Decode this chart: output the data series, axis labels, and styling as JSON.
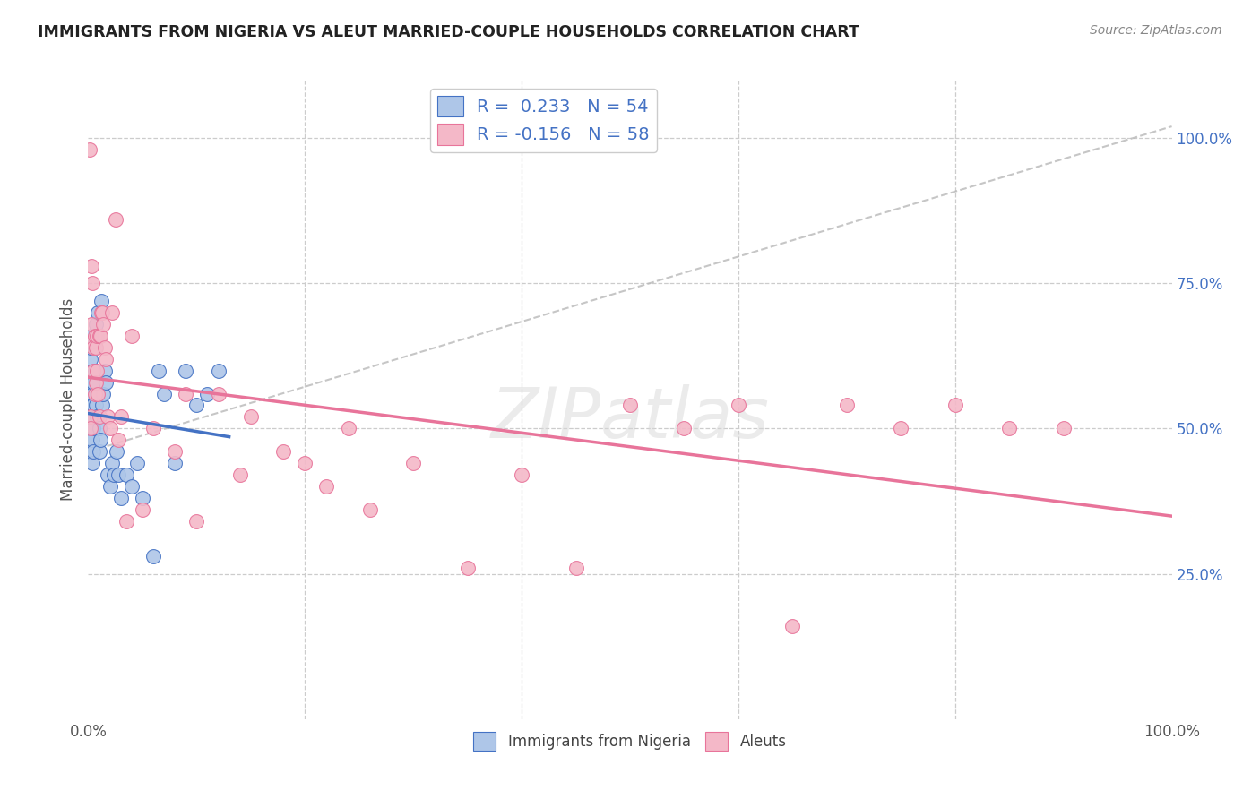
{
  "title": "IMMIGRANTS FROM NIGERIA VS ALEUT MARRIED-COUPLE HOUSEHOLDS CORRELATION CHART",
  "source": "Source: ZipAtlas.com",
  "ylabel": "Married-couple Households",
  "ytick_labels": [
    "25.0%",
    "50.0%",
    "75.0%",
    "100.0%"
  ],
  "ytick_vals": [
    0.25,
    0.5,
    0.75,
    1.0
  ],
  "r1": 0.233,
  "n1": 54,
  "r2": -0.156,
  "n2": 58,
  "color_nigeria": "#aec6e8",
  "color_aleut": "#f4b8c8",
  "line_nigeria": "#4472c4",
  "line_aleut": "#e8749a",
  "line_dashed": "#b8b8b8",
  "background": "#ffffff",
  "nigeria_x": [
    0.0,
    0.001,
    0.001,
    0.001,
    0.001,
    0.002,
    0.002,
    0.002,
    0.002,
    0.003,
    0.003,
    0.003,
    0.004,
    0.004,
    0.004,
    0.004,
    0.005,
    0.005,
    0.005,
    0.005,
    0.006,
    0.006,
    0.007,
    0.007,
    0.008,
    0.008,
    0.009,
    0.01,
    0.01,
    0.011,
    0.012,
    0.013,
    0.014,
    0.015,
    0.016,
    0.018,
    0.02,
    0.022,
    0.024,
    0.026,
    0.028,
    0.03,
    0.035,
    0.04,
    0.045,
    0.05,
    0.06,
    0.065,
    0.07,
    0.08,
    0.09,
    0.1,
    0.11,
    0.12
  ],
  "nigeria_y": [
    0.5,
    0.48,
    0.52,
    0.46,
    0.5,
    0.62,
    0.58,
    0.64,
    0.5,
    0.66,
    0.54,
    0.5,
    0.56,
    0.52,
    0.48,
    0.44,
    0.58,
    0.54,
    0.5,
    0.46,
    0.64,
    0.6,
    0.68,
    0.54,
    0.56,
    0.52,
    0.7,
    0.5,
    0.46,
    0.48,
    0.72,
    0.54,
    0.56,
    0.6,
    0.58,
    0.42,
    0.4,
    0.44,
    0.42,
    0.46,
    0.42,
    0.38,
    0.42,
    0.4,
    0.44,
    0.38,
    0.28,
    0.6,
    0.56,
    0.44,
    0.6,
    0.54,
    0.56,
    0.6
  ],
  "aleut_x": [
    0.001,
    0.002,
    0.002,
    0.003,
    0.003,
    0.004,
    0.004,
    0.005,
    0.005,
    0.006,
    0.006,
    0.007,
    0.007,
    0.008,
    0.008,
    0.009,
    0.01,
    0.01,
    0.011,
    0.012,
    0.013,
    0.014,
    0.015,
    0.016,
    0.018,
    0.02,
    0.022,
    0.025,
    0.028,
    0.03,
    0.035,
    0.04,
    0.05,
    0.06,
    0.08,
    0.09,
    0.1,
    0.12,
    0.14,
    0.15,
    0.18,
    0.2,
    0.22,
    0.24,
    0.26,
    0.3,
    0.35,
    0.4,
    0.45,
    0.5,
    0.55,
    0.6,
    0.65,
    0.7,
    0.75,
    0.8,
    0.85,
    0.9
  ],
  "aleut_y": [
    0.98,
    0.52,
    0.5,
    0.78,
    0.68,
    0.75,
    0.65,
    0.64,
    0.6,
    0.66,
    0.56,
    0.64,
    0.58,
    0.66,
    0.6,
    0.56,
    0.52,
    0.66,
    0.66,
    0.7,
    0.7,
    0.68,
    0.64,
    0.62,
    0.52,
    0.5,
    0.7,
    0.86,
    0.48,
    0.52,
    0.34,
    0.66,
    0.36,
    0.5,
    0.46,
    0.56,
    0.34,
    0.56,
    0.42,
    0.52,
    0.46,
    0.44,
    0.4,
    0.5,
    0.36,
    0.44,
    0.26,
    0.42,
    0.26,
    0.54,
    0.5,
    0.54,
    0.16,
    0.54,
    0.5,
    0.54,
    0.5,
    0.5
  ],
  "xmin": 0.0,
  "xmax": 1.0,
  "ymin": 0.0,
  "ymax": 1.1,
  "nigeria_line_xrange": [
    0.0,
    0.13
  ],
  "aleut_line_xrange": [
    0.0,
    1.0
  ],
  "dashed_line_x": [
    0.0,
    1.0
  ],
  "dashed_line_y": [
    0.46,
    1.02
  ]
}
